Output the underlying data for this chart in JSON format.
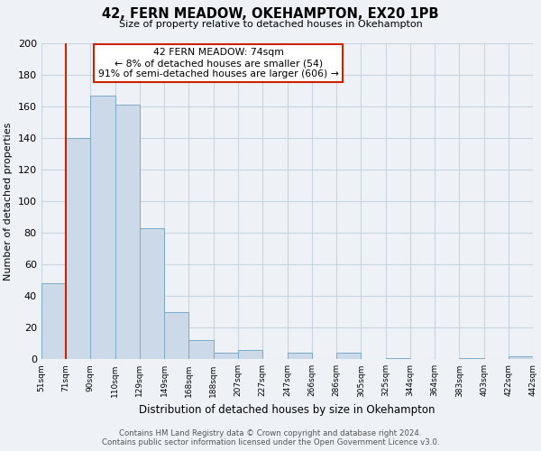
{
  "title": "42, FERN MEADOW, OKEHAMPTON, EX20 1PB",
  "subtitle": "Size of property relative to detached houses in Okehampton",
  "xlabel": "Distribution of detached houses by size in Okehampton",
  "ylabel": "Number of detached properties",
  "bar_labels": [
    "51sqm",
    "71sqm",
    "90sqm",
    "110sqm",
    "129sqm",
    "149sqm",
    "168sqm",
    "188sqm",
    "207sqm",
    "227sqm",
    "247sqm",
    "266sqm",
    "286sqm",
    "305sqm",
    "325sqm",
    "344sqm",
    "364sqm",
    "383sqm",
    "403sqm",
    "422sqm",
    "442sqm"
  ],
  "bar_values": [
    48,
    140,
    167,
    161,
    83,
    30,
    12,
    4,
    6,
    0,
    4,
    0,
    4,
    0,
    1,
    0,
    0,
    1,
    0,
    2
  ],
  "bar_color": "#ccd9e8",
  "bar_edge_color": "#7aaac8",
  "ylim": [
    0,
    200
  ],
  "yticks": [
    0,
    20,
    40,
    60,
    80,
    100,
    120,
    140,
    160,
    180,
    200
  ],
  "marker_color": "#cc2200",
  "annotation_title": "42 FERN MEADOW: 74sqm",
  "annotation_line1": "← 8% of detached houses are smaller (54)",
  "annotation_line2": "91% of semi-detached houses are larger (606) →",
  "annotation_box_color": "#ffffff",
  "annotation_box_edge": "#cc2200",
  "footer1": "Contains HM Land Registry data © Crown copyright and database right 2024.",
  "footer2": "Contains public sector information licensed under the Open Government Licence v3.0.",
  "background_color": "#eef2f7",
  "plot_background": "#eef2f7",
  "grid_color": "#c8d4e0",
  "marker_bar_index": 1
}
